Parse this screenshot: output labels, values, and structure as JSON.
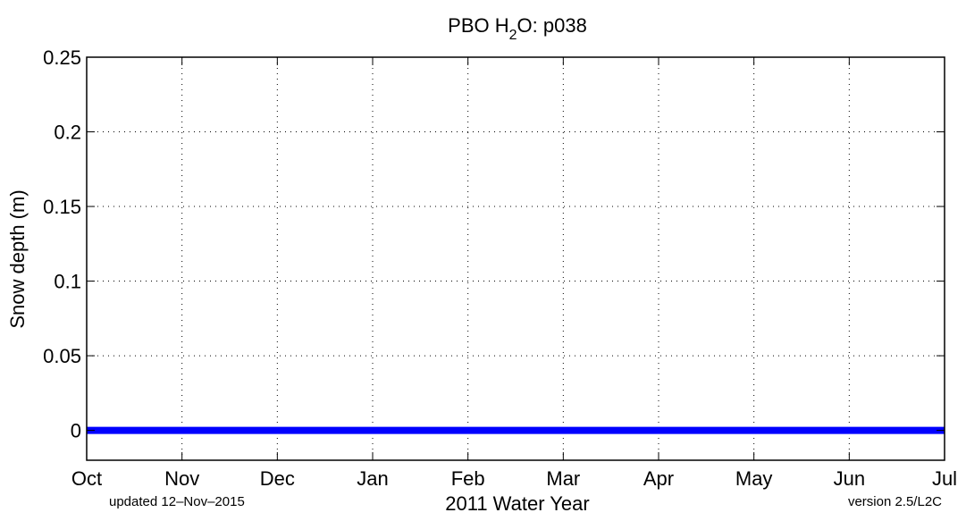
{
  "chart_data": {
    "type": "line",
    "title": "PBO H2O: p038",
    "title_parts": {
      "prefix": "PBO H",
      "subscript": "2",
      "suffix": "O: p038"
    },
    "xlabel": "2011 Water Year",
    "ylabel": "Snow depth (m)",
    "categories": [
      "Oct",
      "Nov",
      "Dec",
      "Jan",
      "Feb",
      "Mar",
      "Apr",
      "May",
      "Jun",
      "Jul"
    ],
    "yticks": [
      "0",
      "0.05",
      "0.1",
      "0.15",
      "0.2",
      "0.25"
    ],
    "ylim": [
      -0.02,
      0.25
    ],
    "grid": true,
    "series": [
      {
        "name": "Snow depth",
        "color": "#0000ff",
        "x_start": "Oct",
        "x_end": "Jul",
        "values": [
          0,
          0,
          0,
          0,
          0,
          0,
          0,
          0,
          0,
          0
        ]
      }
    ],
    "annotations": {
      "updated": "updated 12–Nov–2015",
      "version": "version 2.5/L2C"
    }
  }
}
